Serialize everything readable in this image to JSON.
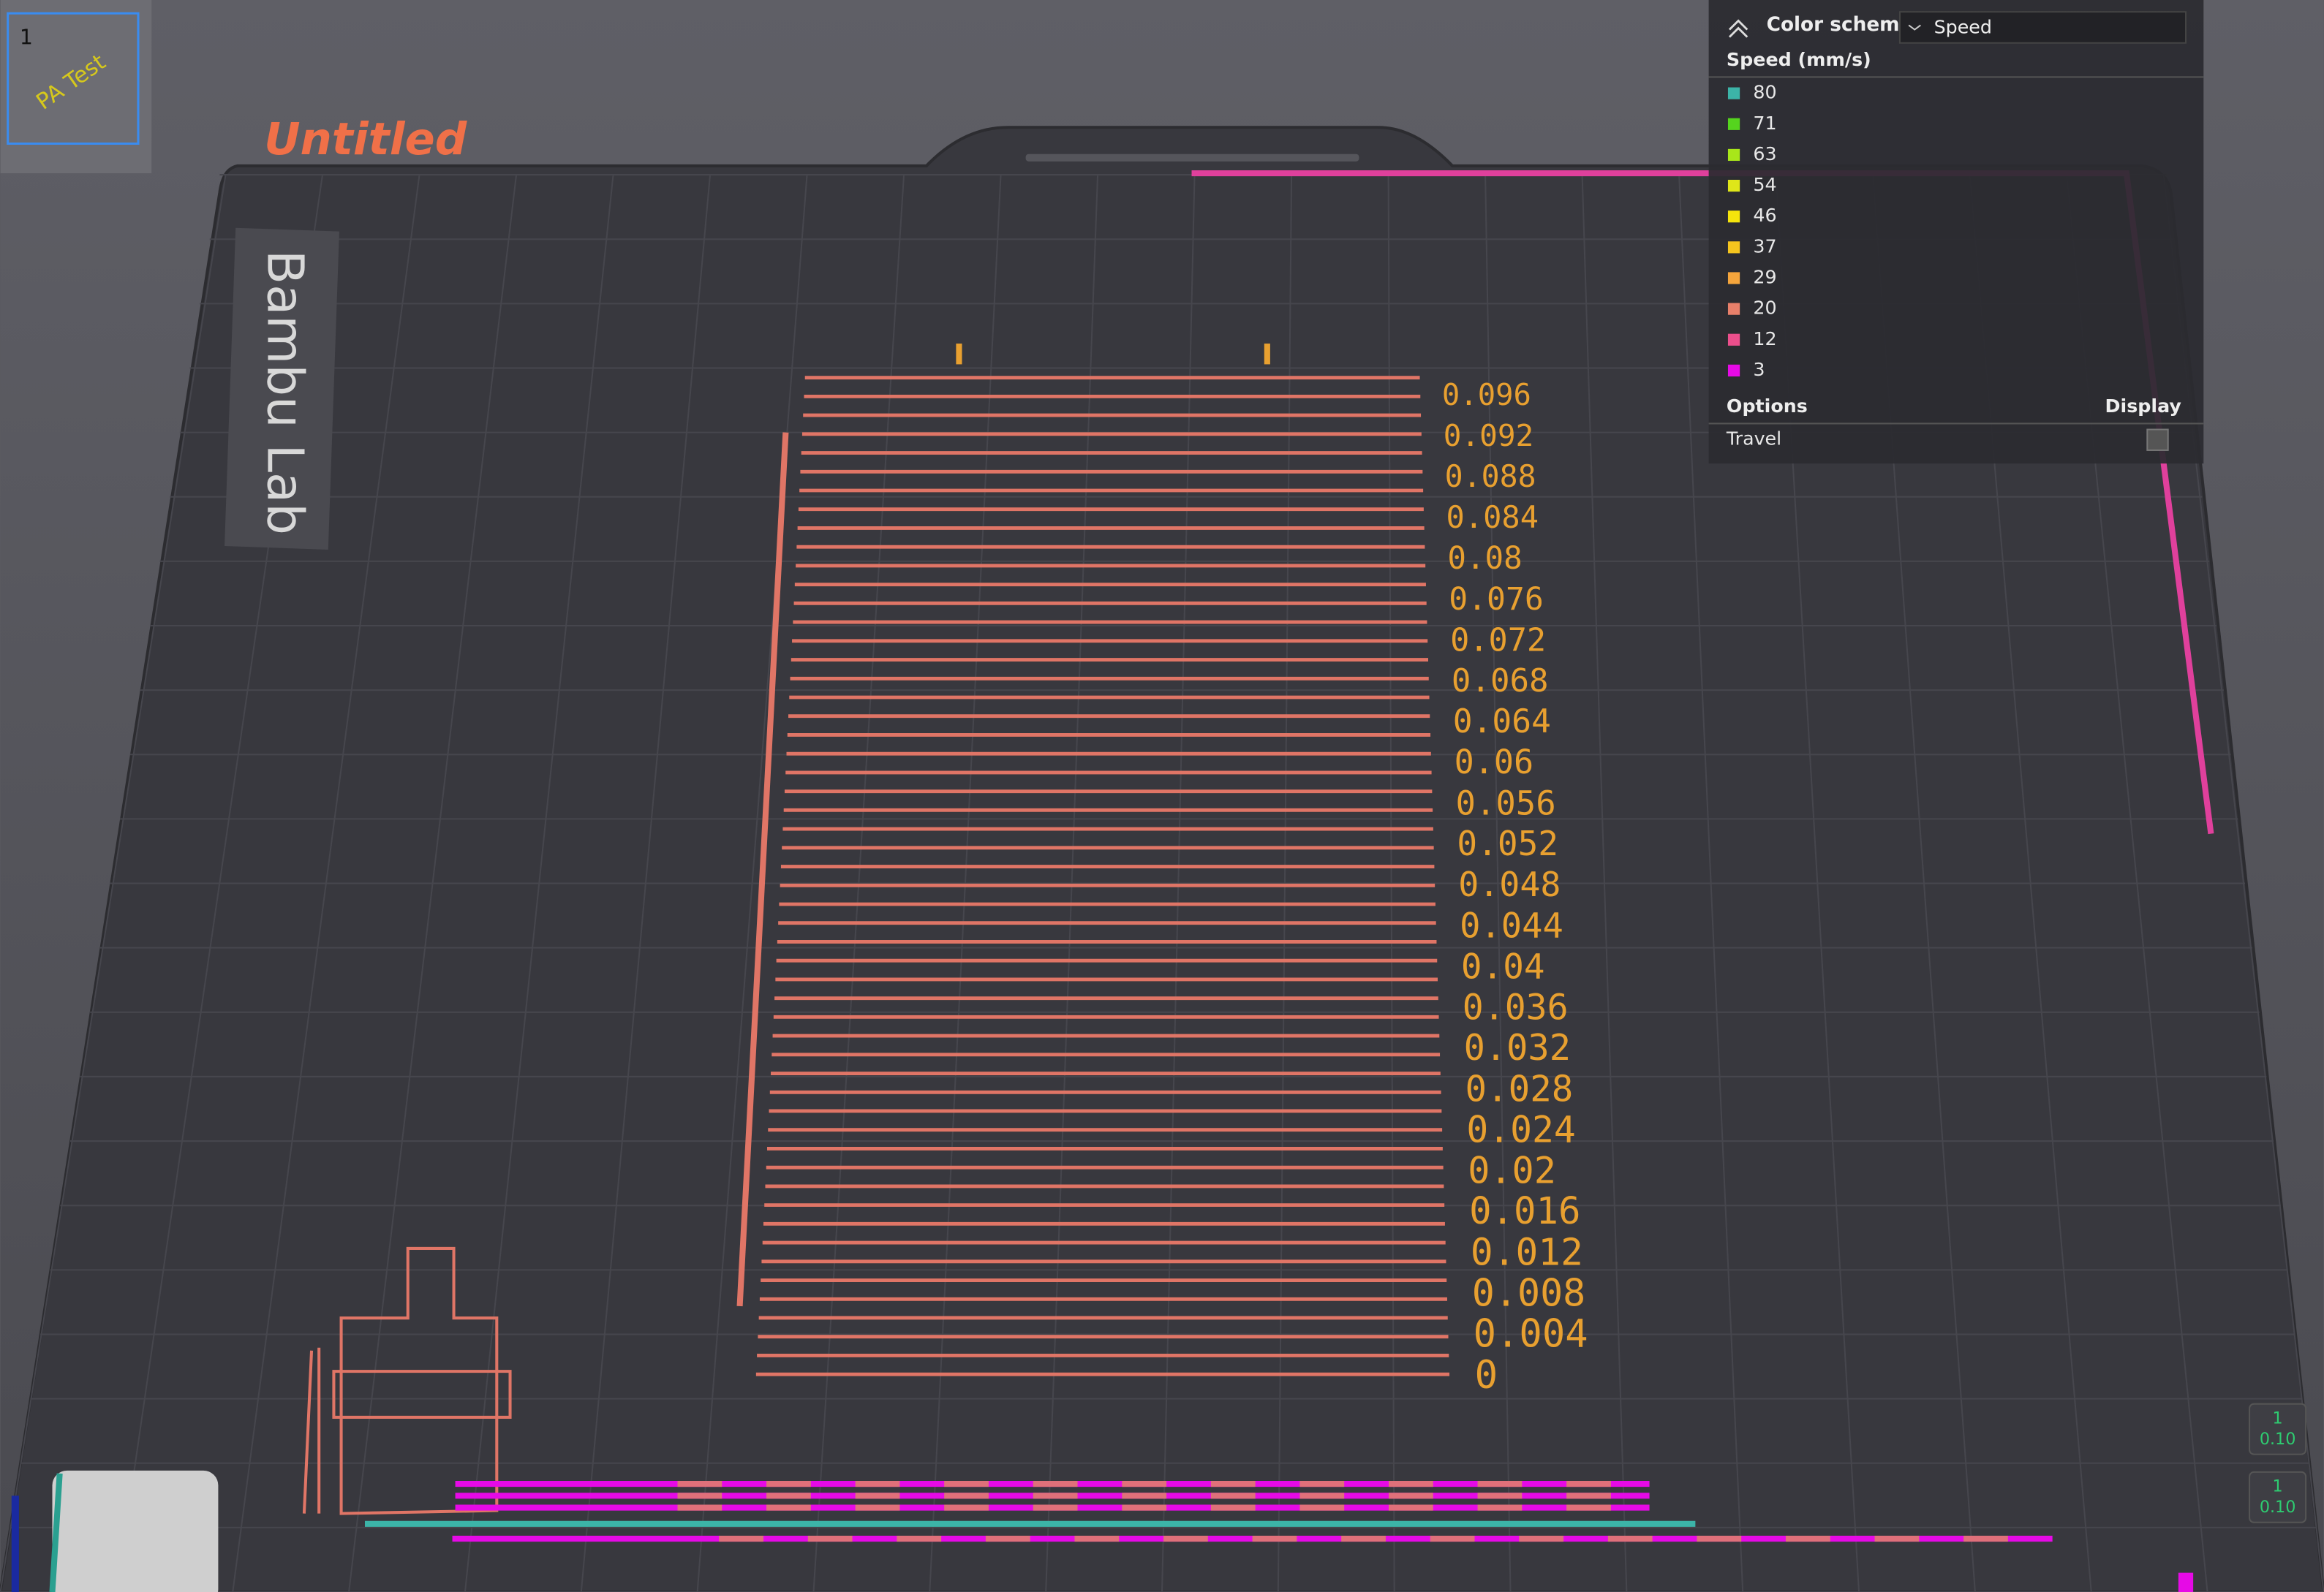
{
  "thumbnail": {
    "index": "1",
    "label": "PA Test"
  },
  "plate": {
    "name": "Untitled",
    "brand": "Bambu Lab"
  },
  "legend": {
    "title": "Color scheme",
    "scheme": "Speed",
    "heading": "Speed (mm/s)",
    "items": [
      {
        "label": "80",
        "color": "#3cb4a8"
      },
      {
        "label": "71",
        "color": "#55d41e"
      },
      {
        "label": "63",
        "color": "#a8e61a"
      },
      {
        "label": "54",
        "color": "#dfe619"
      },
      {
        "label": "46",
        "color": "#f5e40c"
      },
      {
        "label": "37",
        "color": "#f5c51e"
      },
      {
        "label": "29",
        "color": "#f5a53c"
      },
      {
        "label": "20",
        "color": "#e8806a"
      },
      {
        "label": "12",
        "color": "#ec4f8c"
      },
      {
        "label": "3",
        "color": "#e60ae6"
      }
    ],
    "options_heading": "Options",
    "display_heading": "Display",
    "options": [
      {
        "label": "Travel"
      }
    ]
  },
  "pa_labels": [
    "0.096",
    "0.092",
    "0.088",
    "0.084",
    "0.08",
    "0.076",
    "0.072",
    "0.068",
    "0.064",
    "0.06",
    "0.056",
    "0.052",
    "0.048",
    "0.044",
    "0.04",
    "0.036",
    "0.032",
    "0.028",
    "0.024",
    "0.02",
    "0.016",
    "0.012",
    "0.008",
    "0.004",
    "0"
  ],
  "layer_slider": {
    "top": {
      "layer": "1",
      "height": "0.10"
    },
    "bottom": {
      "layer": "1",
      "height": "0.10"
    }
  }
}
